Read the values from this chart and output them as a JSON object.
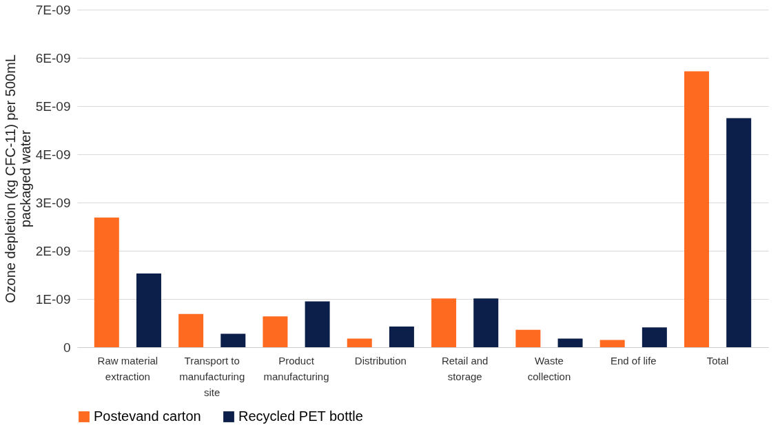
{
  "chart_data": {
    "type": "bar",
    "ylabel": "Ozone depletion (kg CFC-11) per 500mL packaged water",
    "categories": [
      "Raw material extraction",
      "Transport to manufacturing site",
      "Product manufacturing",
      "Distribution",
      "Retail and storage",
      "Waste collection",
      "End of life",
      "Total"
    ],
    "series": [
      {
        "name": "Postevand carton",
        "color": "#ff6a21",
        "values": [
          2.69e-09,
          6.9e-10,
          6.4e-10,
          1.8e-10,
          1.01e-09,
          3.6e-10,
          1.5e-10,
          5.72e-09
        ]
      },
      {
        "name": "Recycled PET bottle",
        "color": "#0c1f4a",
        "values": [
          1.53e-09,
          2.8e-10,
          9.5e-10,
          4.3e-10,
          1.01e-09,
          1.8e-10,
          4.1e-10,
          4.75e-09
        ]
      }
    ],
    "ylim": [
      0,
      7e-09
    ],
    "yticks": [
      0,
      {
        "value": 1e-09,
        "label": "1E-09"
      },
      {
        "value": 2e-09,
        "label": "2E-09"
      },
      {
        "value": 3e-09,
        "label": "3E-09"
      },
      {
        "value": 4e-09,
        "label": "4E-09"
      },
      {
        "value": 5e-09,
        "label": "5E-09"
      },
      {
        "value": 6e-09,
        "label": "6E-09"
      },
      {
        "value": 7e-09,
        "label": "7E-09"
      }
    ],
    "grid": "y",
    "legend": "bottom"
  }
}
